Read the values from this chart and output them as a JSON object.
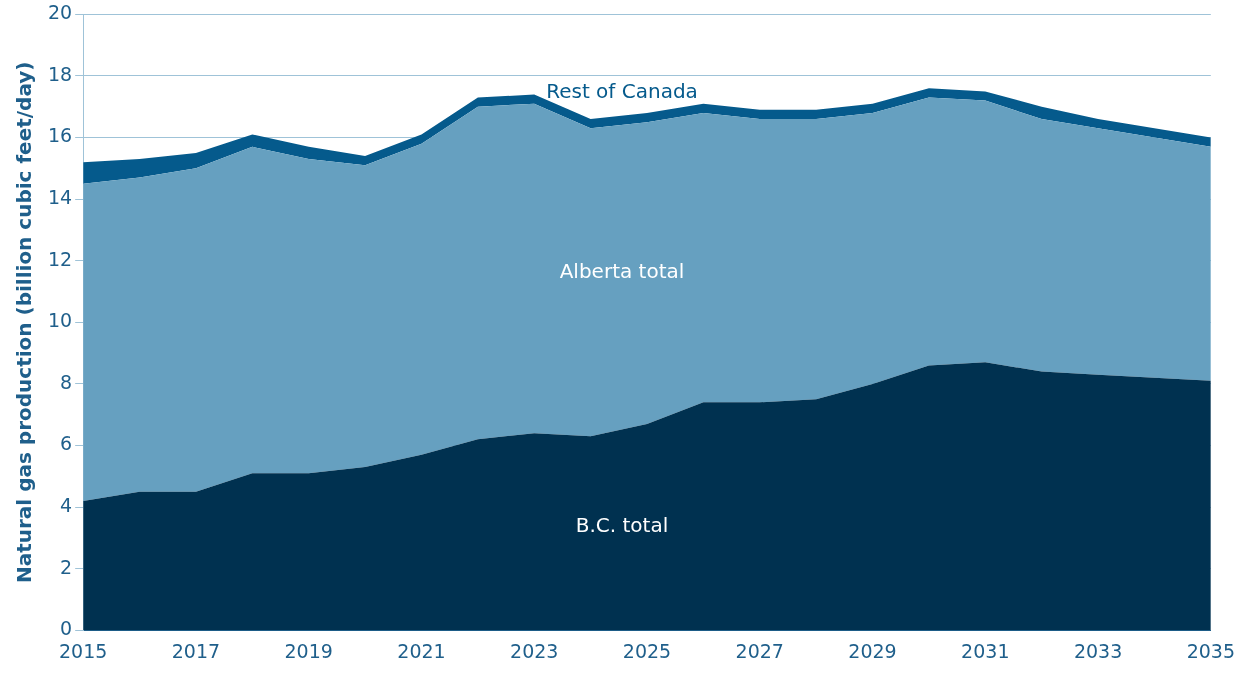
{
  "chart_data": {
    "type": "area",
    "stacked": true,
    "ylabel": "Natural gas production (billion cubic feet/day)",
    "x": [
      2015,
      2016,
      2017,
      2018,
      2019,
      2020,
      2021,
      2022,
      2023,
      2024,
      2025,
      2026,
      2027,
      2028,
      2029,
      2030,
      2031,
      2032,
      2033,
      2034,
      2035
    ],
    "series": [
      {
        "name": "B.C. total",
        "color": "#003150",
        "values": [
          4.2,
          4.5,
          4.5,
          5.1,
          5.1,
          5.3,
          5.7,
          6.2,
          6.4,
          6.3,
          6.7,
          7.4,
          7.4,
          7.5,
          8.0,
          8.6,
          8.7,
          8.4,
          8.3,
          8.2,
          8.1
        ]
      },
      {
        "name": "Alberta total",
        "color": "#66a0c0",
        "values": [
          10.3,
          10.2,
          10.5,
          10.6,
          10.2,
          9.8,
          10.1,
          10.8,
          10.7,
          10.0,
          9.8,
          9.4,
          9.2,
          9.1,
          8.8,
          8.7,
          8.5,
          8.2,
          8.0,
          7.8,
          7.6
        ]
      },
      {
        "name": "Rest of Canada",
        "color": "#055a8c",
        "values": [
          0.7,
          0.6,
          0.5,
          0.4,
          0.4,
          0.3,
          0.3,
          0.3,
          0.3,
          0.3,
          0.3,
          0.3,
          0.3,
          0.3,
          0.3,
          0.3,
          0.3,
          0.4,
          0.3,
          0.3,
          0.3
        ]
      }
    ],
    "xlim": [
      2015,
      2035
    ],
    "xticks": [
      2015,
      2017,
      2019,
      2021,
      2023,
      2025,
      2027,
      2029,
      2031,
      2033,
      2035
    ],
    "ylim": [
      0,
      20
    ],
    "yticks": [
      0,
      2,
      4,
      6,
      8,
      10,
      12,
      14,
      16,
      18,
      20
    ],
    "grid": "y",
    "legend": false
  }
}
